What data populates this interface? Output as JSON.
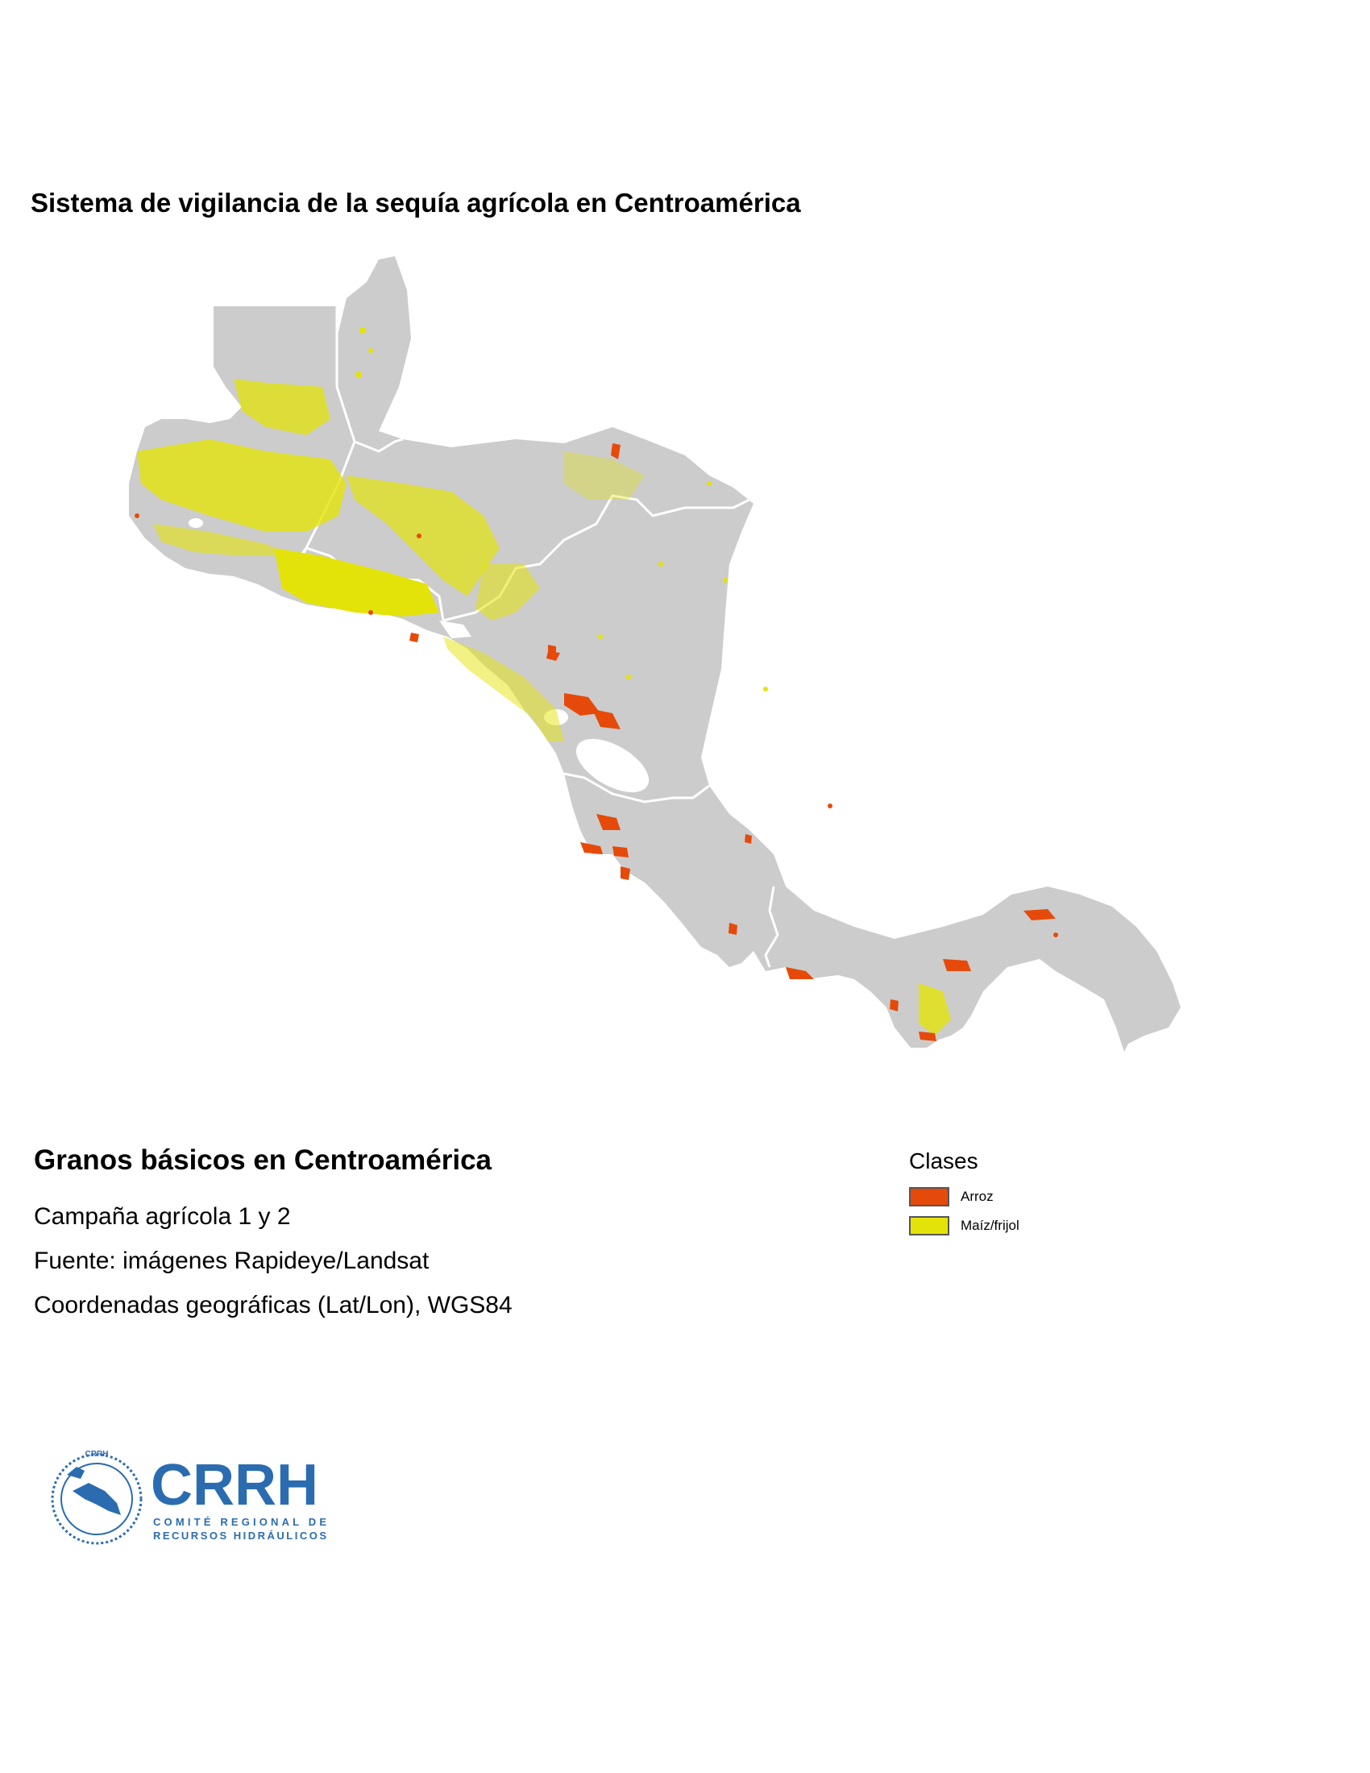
{
  "title": "Sistema de vigilancia de la sequía agrícola en Centroamérica",
  "subtitle": "Granos básicos en Centroamérica",
  "info": {
    "campaign": "Campaña agrícola 1 y 2",
    "source": "Fuente: imágenes Rapideye/Landsat",
    "coords": "Coordenadas geográficas (Lat/Lon), WGS84"
  },
  "legend": {
    "title": "Clases",
    "items": [
      {
        "label": "Arroz",
        "color": "#e64a0a"
      },
      {
        "label": "Maíz/frijol",
        "color": "#e3e30a"
      }
    ]
  },
  "map": {
    "land_color": "#cccccc",
    "border_color": "#ffffff"
  },
  "logo": {
    "acronym": "CRRH",
    "line1": "COMITÉ REGIONAL DE",
    "line2": "RECURSOS HIDRÁULICOS"
  }
}
